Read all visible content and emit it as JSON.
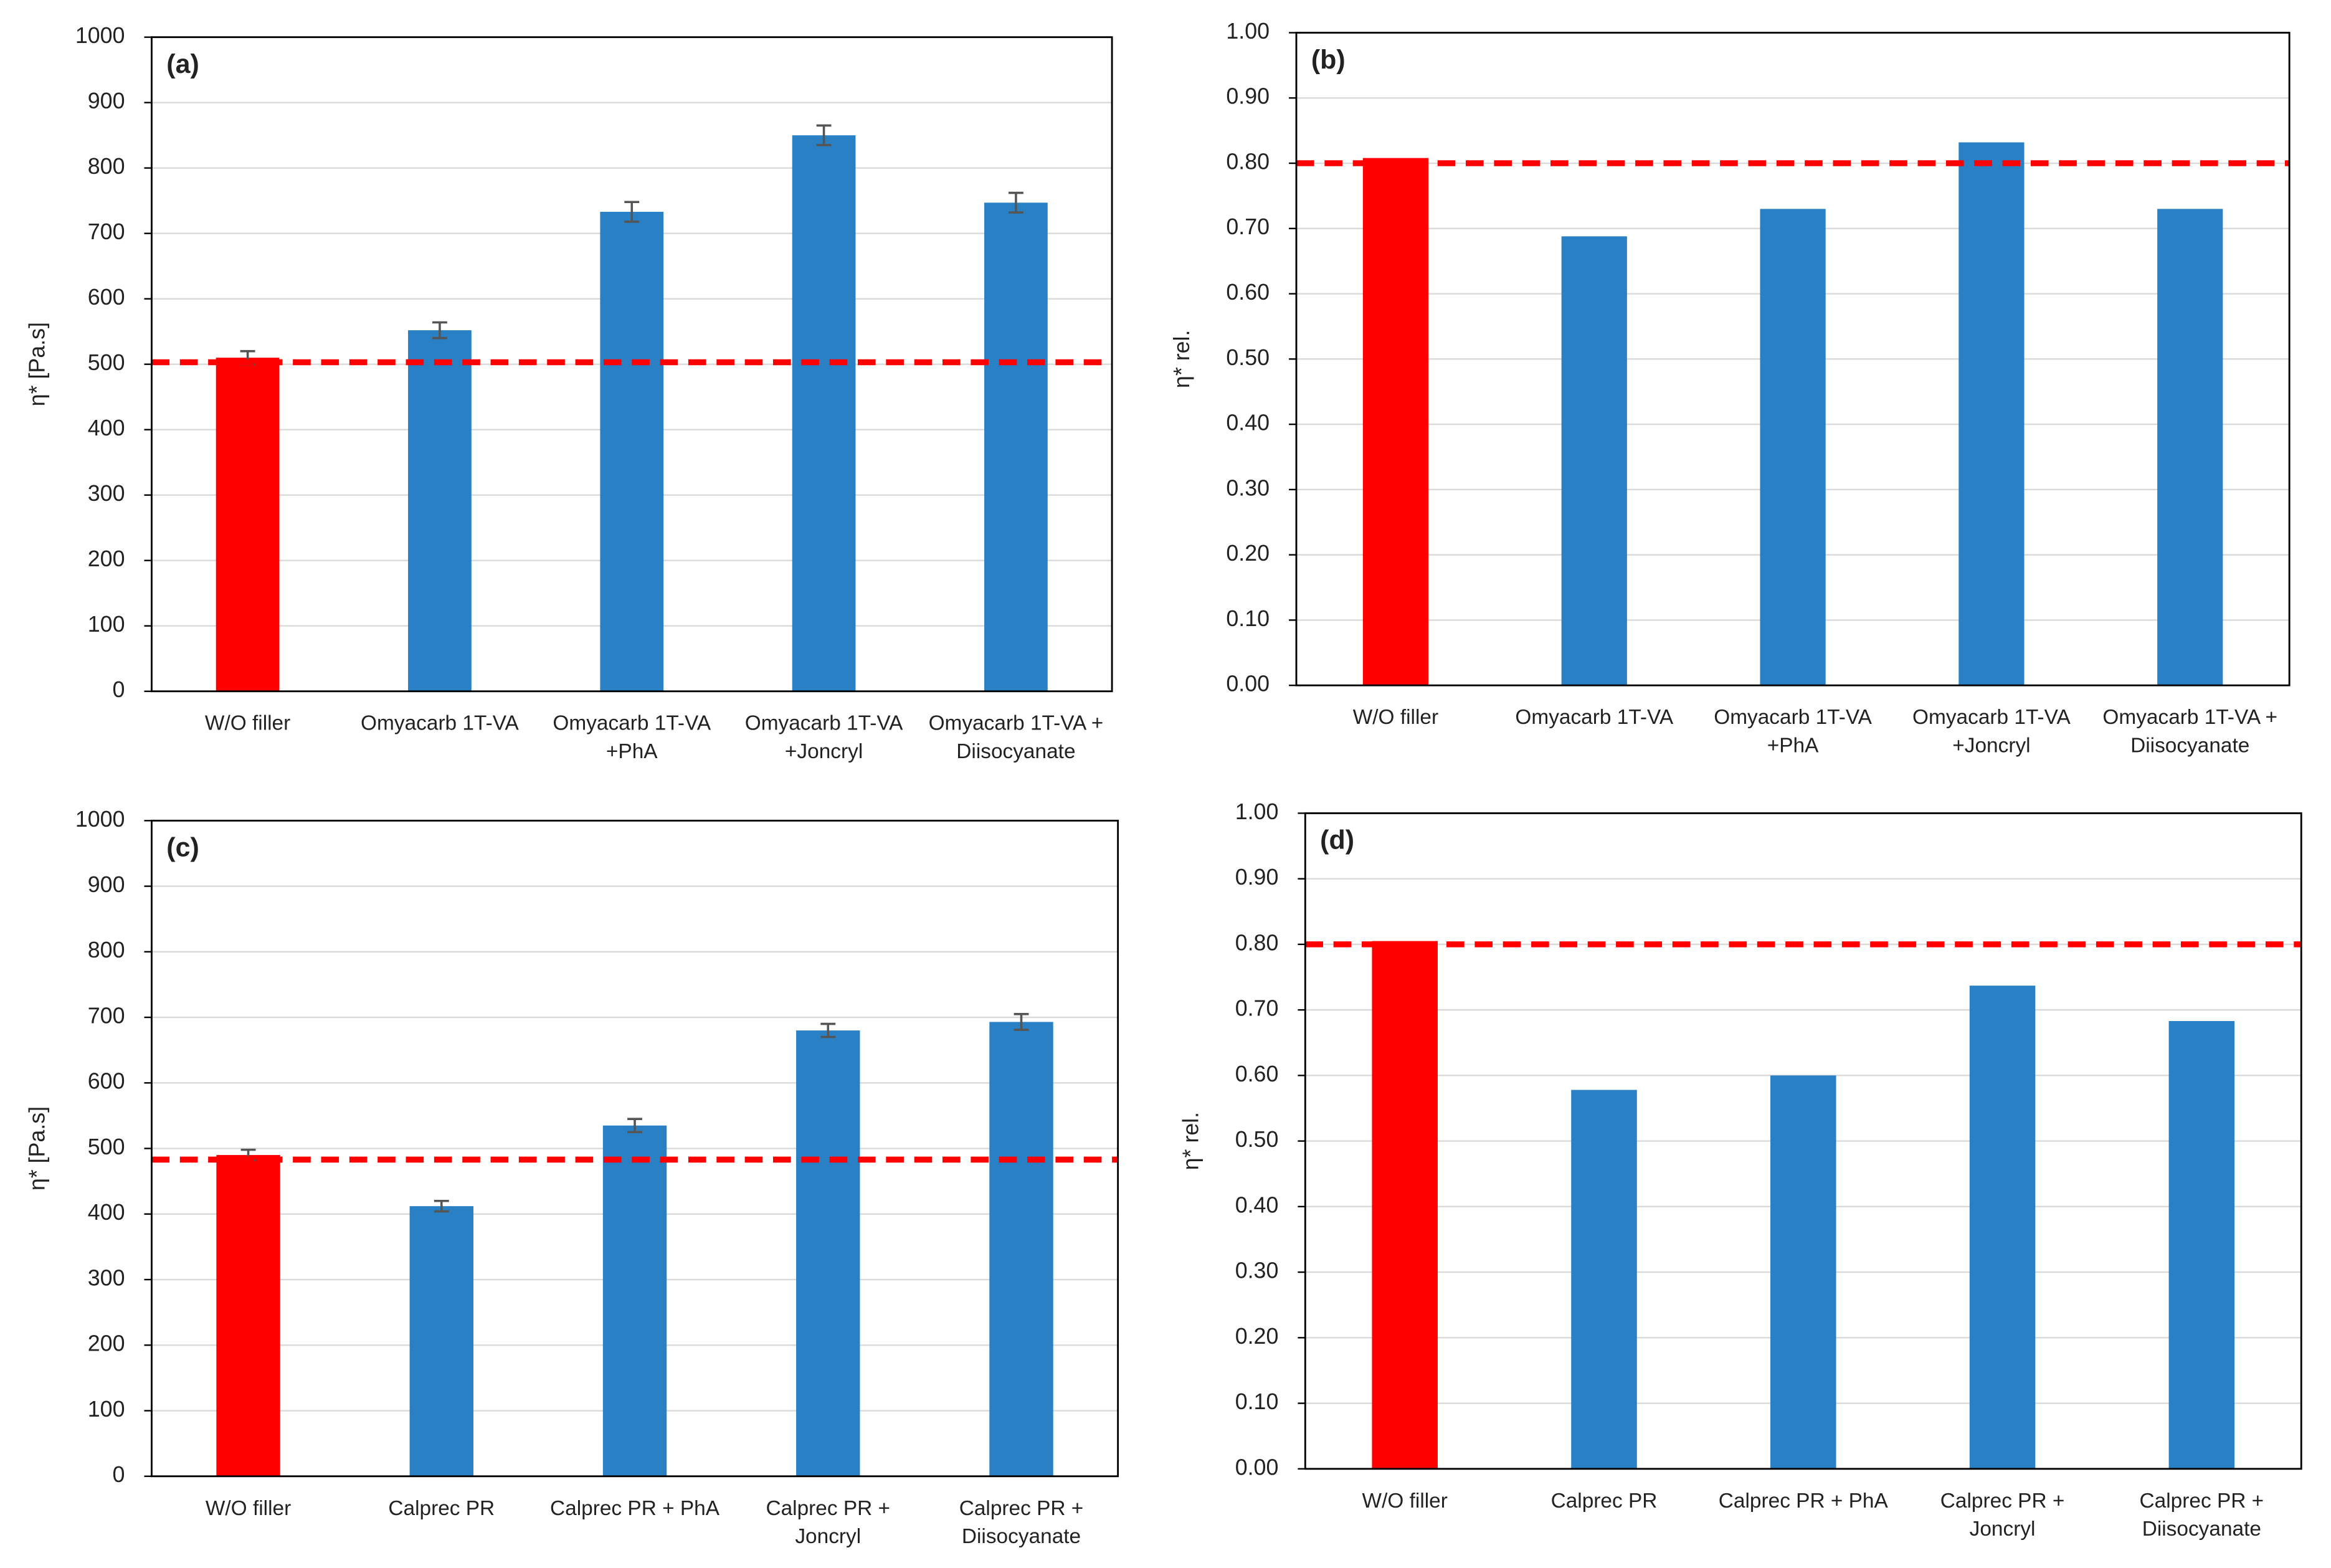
{
  "chart_data": [
    {
      "type": "bar",
      "annotation": "(a)",
      "y_label": "η* [Pa.s]",
      "categories": [
        [
          "W/O filler"
        ],
        [
          "Omyacarb 1T-VA"
        ],
        [
          "Omyacarb 1T-VA",
          "+PhA"
        ],
        [
          "Omyacarb 1T-VA",
          "+Joncryl"
        ],
        [
          "Omyacarb 1T-VA +",
          "Diisocyanate"
        ]
      ],
      "values": [
        510,
        552,
        733,
        850,
        747
      ],
      "errors": [
        10,
        12,
        15,
        15,
        15
      ],
      "colors": [
        "#ff0000",
        "#2980c4",
        "#2980c4",
        "#2980c4",
        "#2980c4"
      ],
      "reference_line": {
        "value": 503,
        "color": "#ff0000"
      },
      "ylim": [
        0,
        1000
      ],
      "yticks": [
        0,
        100,
        200,
        300,
        400,
        500,
        600,
        700,
        800,
        900,
        1000
      ],
      "grid": true
    },
    {
      "type": "bar",
      "annotation": "(b)",
      "y_label": "η* rel.",
      "categories": [
        [
          "W/O filler"
        ],
        [
          "Omyacarb 1T-VA"
        ],
        [
          "Omyacarb 1T-VA",
          "+PhA"
        ],
        [
          "Omyacarb 1T-VA",
          "+Joncryl"
        ],
        [
          "Omyacarb 1T-VA +",
          "Diisocyanate"
        ]
      ],
      "values": [
        0.808,
        0.688,
        0.73,
        0.832,
        0.73
      ],
      "colors": [
        "#ff0000",
        "#2980c4",
        "#2980c4",
        "#2980c4",
        "#2980c4"
      ],
      "reference_line": {
        "value": 0.8,
        "color": "#ff0000"
      },
      "ylim": [
        0,
        1
      ],
      "yticks": [
        {
          "value": 0,
          "label": "0.00"
        },
        {
          "value": 0.1,
          "label": "0.10"
        },
        {
          "value": 0.2,
          "label": "0.20"
        },
        {
          "value": 0.3,
          "label": "0.30"
        },
        {
          "value": 0.4,
          "label": "0.40"
        },
        {
          "value": 0.5,
          "label": "0.50"
        },
        {
          "value": 0.6,
          "label": "0.60"
        },
        {
          "value": 0.7,
          "label": "0.70"
        },
        {
          "value": 0.8,
          "label": "0.80"
        },
        {
          "value": 0.9,
          "label": "0.90"
        },
        {
          "value": 1,
          "label": "1.00"
        }
      ],
      "grid": true
    },
    {
      "type": "bar",
      "annotation": "(c)",
      "y_label": "η* [Pa.s]",
      "categories": [
        [
          "W/O filler"
        ],
        [
          "Calprec  PR"
        ],
        [
          "Calprec  PR + PhA"
        ],
        [
          "Calprec  PR +",
          "Joncryl"
        ],
        [
          "Calprec  PR +",
          "Diisocyanate"
        ]
      ],
      "values": [
        490,
        412,
        535,
        680,
        693
      ],
      "errors": [
        8,
        8,
        10,
        10,
        12
      ],
      "colors": [
        "#ff0000",
        "#2980c4",
        "#2980c4",
        "#2980c4",
        "#2980c4"
      ],
      "reference_line": {
        "value": 483,
        "color": "#ff0000"
      },
      "ylim": [
        0,
        1000
      ],
      "yticks": [
        0,
        100,
        200,
        300,
        400,
        500,
        600,
        700,
        800,
        900,
        1000
      ],
      "grid": true
    },
    {
      "type": "bar",
      "annotation": "(d)",
      "y_label": "η* rel.",
      "categories": [
        [
          "W/O filler"
        ],
        [
          "Calprec  PR"
        ],
        [
          "Calprec  PR + PhA"
        ],
        [
          "Calprec  PR +",
          "Joncryl"
        ],
        [
          "Calprec  PR +",
          "Diisocyanate"
        ]
      ],
      "values": [
        0.805,
        0.578,
        0.6,
        0.737,
        0.683
      ],
      "colors": [
        "#ff0000",
        "#2980c4",
        "#2980c4",
        "#2980c4",
        "#2980c4"
      ],
      "reference_line": {
        "value": 0.8,
        "color": "#ff0000"
      },
      "ylim": [
        0,
        1
      ],
      "yticks": [
        {
          "value": 0,
          "label": "0.00"
        },
        {
          "value": 0.1,
          "label": "0.10"
        },
        {
          "value": 0.2,
          "label": "0.20"
        },
        {
          "value": 0.3,
          "label": "0.30"
        },
        {
          "value": 0.4,
          "label": "0.40"
        },
        {
          "value": 0.5,
          "label": "0.50"
        },
        {
          "value": 0.6,
          "label": "0.60"
        },
        {
          "value": 0.7,
          "label": "0.70"
        },
        {
          "value": 0.8,
          "label": "0.80"
        },
        {
          "value": 0.9,
          "label": "0.90"
        },
        {
          "value": 1,
          "label": "1.00"
        }
      ],
      "grid": true
    }
  ]
}
